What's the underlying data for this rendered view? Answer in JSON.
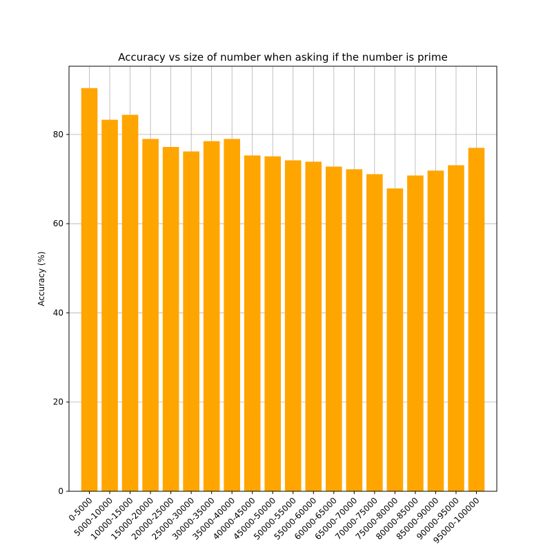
{
  "chart_data": {
    "type": "bar",
    "title": "Accuracy vs size of number when asking if the number is prime",
    "xlabel": "",
    "ylabel": "Accuracy (%)",
    "categories": [
      "0-5000",
      "5000-10000",
      "10000-15000",
      "15000-20000",
      "20000-25000",
      "25000-30000",
      "30000-35000",
      "35000-40000",
      "40000-45000",
      "45000-50000",
      "50000-55000",
      "55000-60000",
      "60000-65000",
      "65000-70000",
      "70000-75000",
      "75000-80000",
      "80000-85000",
      "85000-90000",
      "90000-95000",
      "95000-100000"
    ],
    "values": [
      90.4,
      83.3,
      84.4,
      79.0,
      77.2,
      76.2,
      78.5,
      79.0,
      75.3,
      75.1,
      74.2,
      73.9,
      72.8,
      72.2,
      71.1,
      67.9,
      70.8,
      71.9,
      73.1,
      77.0
    ],
    "ylim": [
      0,
      95.3
    ],
    "yticks": [
      0,
      20,
      40,
      60,
      80
    ],
    "grid": true,
    "bar_color": "#ffa500",
    "grid_color": "#b0b0b0"
  }
}
